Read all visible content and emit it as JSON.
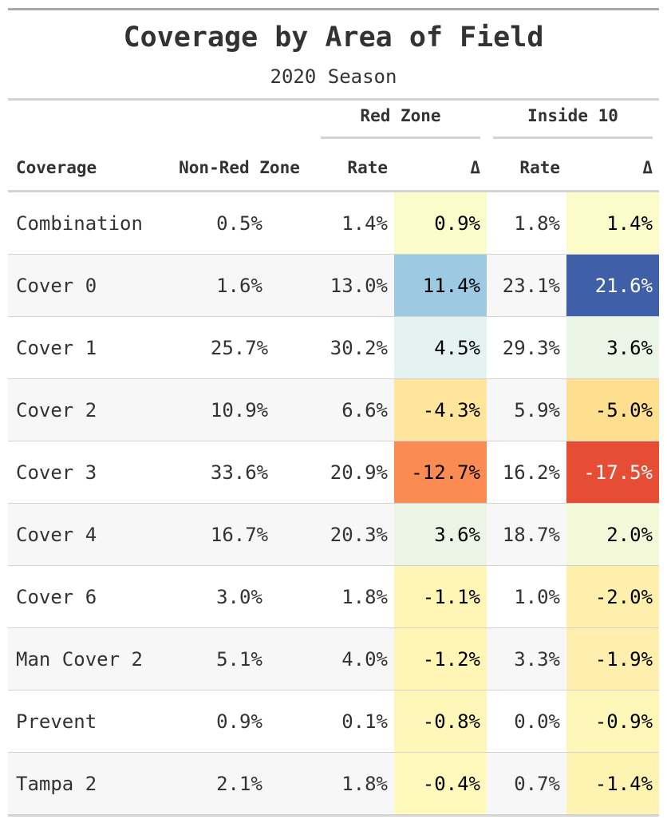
{
  "chart_data": {
    "type": "table",
    "title": "Coverage by Area of Field",
    "subtitle": "2020 Season",
    "spanners": {
      "red_zone": "Red Zone",
      "inside_10": "Inside 10"
    },
    "columns": [
      "Coverage",
      "Non-Red Zone",
      "Rate",
      "Δ",
      "Rate",
      "Δ"
    ],
    "rows": [
      {
        "coverage": "Combination",
        "non_red_zone": "0.5%",
        "rz_rate": "1.4%",
        "rz_delta": "0.9%",
        "i10_rate": "1.8%",
        "i10_delta": "1.4%",
        "rz_delta_color": "#fbfcc9",
        "i10_delta_color": "#fbfcc9",
        "rz_text": "#000000",
        "i10_text": "#000000"
      },
      {
        "coverage": "Cover 0",
        "non_red_zone": "1.6%",
        "rz_rate": "13.0%",
        "rz_delta": "11.4%",
        "i10_rate": "23.1%",
        "i10_delta": "21.6%",
        "rz_delta_color": "#9dcae2",
        "i10_delta_color": "#3f60a9",
        "rz_text": "#000000",
        "i10_text": "#ffffff"
      },
      {
        "coverage": "Cover 1",
        "non_red_zone": "25.7%",
        "rz_rate": "30.2%",
        "rz_delta": "4.5%",
        "i10_rate": "29.3%",
        "i10_delta": "3.6%",
        "rz_delta_color": "#e4f2f1",
        "i10_delta_color": "#ebf5e6",
        "rz_text": "#000000",
        "i10_text": "#000000"
      },
      {
        "coverage": "Cover 2",
        "non_red_zone": "10.9%",
        "rz_rate": "6.6%",
        "rz_delta": "-4.3%",
        "i10_rate": "5.9%",
        "i10_delta": "-5.0%",
        "rz_delta_color": "#fee59b",
        "i10_delta_color": "#fedf90",
        "rz_text": "#000000",
        "i10_text": "#000000"
      },
      {
        "coverage": "Cover 3",
        "non_red_zone": "33.6%",
        "rz_rate": "20.9%",
        "rz_delta": "-12.7%",
        "i10_rate": "16.2%",
        "i10_delta": "-17.5%",
        "rz_delta_color": "#fa8b52",
        "i10_delta_color": "#e54e35",
        "rz_text": "#000000",
        "i10_text": "#ffffff"
      },
      {
        "coverage": "Cover 4",
        "non_red_zone": "16.7%",
        "rz_rate": "20.3%",
        "rz_delta": "3.6%",
        "i10_rate": "18.7%",
        "i10_delta": "2.0%",
        "rz_delta_color": "#ebf5e6",
        "i10_delta_color": "#f3f9d8",
        "rz_text": "#000000",
        "i10_text": "#000000"
      },
      {
        "coverage": "Cover 6",
        "non_red_zone": "3.0%",
        "rz_rate": "1.8%",
        "rz_delta": "-1.1%",
        "i10_rate": "1.0%",
        "i10_delta": "-2.0%",
        "rz_delta_color": "#fff5b5",
        "i10_delta_color": "#feefad",
        "rz_text": "#000000",
        "i10_text": "#000000"
      },
      {
        "coverage": "Man Cover 2",
        "non_red_zone": "5.1%",
        "rz_rate": "4.0%",
        "rz_delta": "-1.2%",
        "i10_rate": "3.3%",
        "i10_delta": "-1.9%",
        "rz_delta_color": "#fff5b4",
        "i10_delta_color": "#feefae",
        "rz_text": "#000000",
        "i10_text": "#000000"
      },
      {
        "coverage": "Prevent",
        "non_red_zone": "0.9%",
        "rz_rate": "0.1%",
        "rz_delta": "-0.8%",
        "i10_rate": "0.0%",
        "i10_delta": "-0.9%",
        "rz_delta_color": "#fff7b8",
        "i10_delta_color": "#fff7b7",
        "rz_text": "#000000",
        "i10_text": "#000000"
      },
      {
        "coverage": "Tampa 2",
        "non_red_zone": "2.1%",
        "rz_rate": "1.8%",
        "rz_delta": "-0.4%",
        "i10_rate": "0.7%",
        "i10_delta": "-1.4%",
        "rz_delta_color": "#fffabc",
        "i10_delta_color": "#fff3b2",
        "rz_text": "#000000",
        "i10_text": "#000000"
      }
    ]
  }
}
